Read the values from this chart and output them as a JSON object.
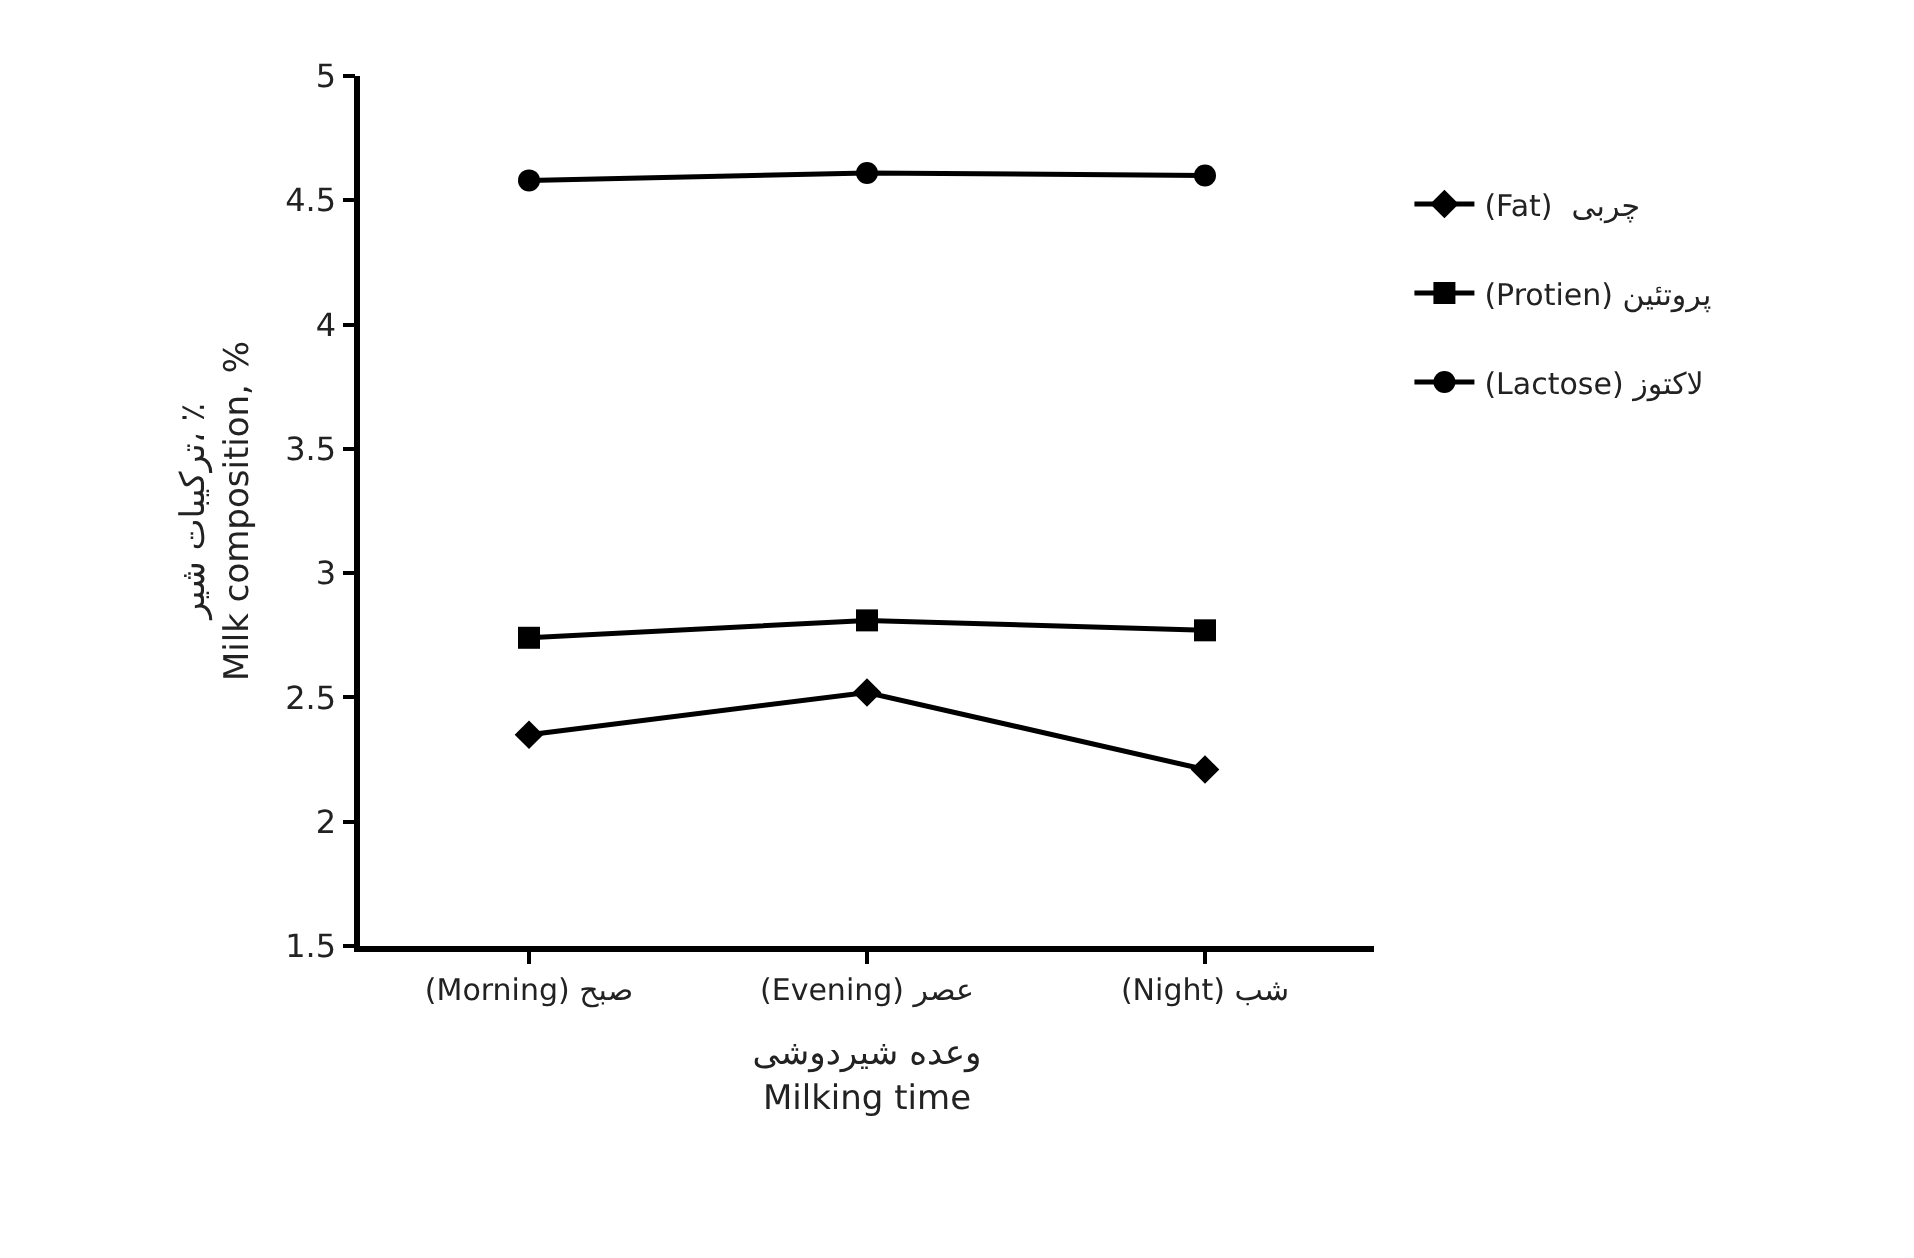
{
  "chart_data": {
    "type": "line",
    "xlabel": "وعده شیردوشی\nMilking time",
    "ylabel": "ترکیبات شیر، ٪\nMilk composition, %",
    "categories": [
      "(Morning) صبح",
      "(Evening) عصر",
      "(Night) شب"
    ],
    "series": [
      {
        "name": "(Fat)  چربی",
        "color": "#000000",
        "marker": "diamond",
        "values": [
          2.35,
          2.52,
          2.21
        ]
      },
      {
        "name": "(Protien) پروتئین",
        "color": "#000000",
        "marker": "square",
        "values": [
          2.74,
          2.81,
          2.77
        ]
      },
      {
        "name": "(Lactose) لاکتوز",
        "color": "#000000",
        "marker": "circle",
        "values": [
          4.58,
          4.61,
          4.6
        ]
      }
    ],
    "ylim": [
      1.5,
      5
    ],
    "yticks": [
      1.5,
      2,
      2.5,
      3,
      3.5,
      4,
      4.5,
      5
    ],
    "legend": "right",
    "line_style": "solid"
  }
}
